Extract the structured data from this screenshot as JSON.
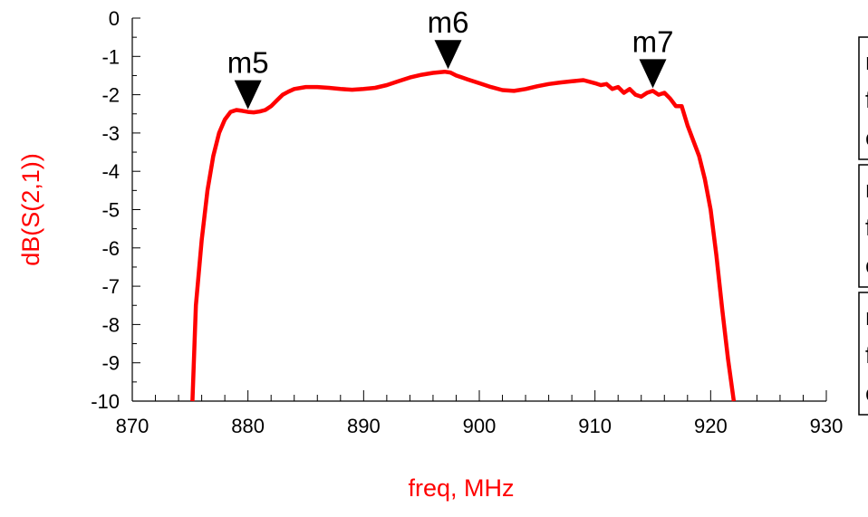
{
  "chart_data": {
    "type": "line",
    "xlabel": "freq, MHz",
    "ylabel": "dB(S(2,1))",
    "xlim": [
      870,
      930
    ],
    "ylim": [
      -10,
      0
    ],
    "x_ticks": [
      870,
      880,
      890,
      900,
      910,
      920,
      930
    ],
    "y_ticks": [
      0,
      -1,
      -2,
      -3,
      -4,
      -5,
      -6,
      -7,
      -8,
      -9,
      -10
    ],
    "grid": false,
    "series": [
      {
        "color": "#ff0000",
        "x": [
          875.2,
          875.5,
          876.0,
          876.5,
          877.0,
          877.5,
          878.0,
          878.5,
          879.0,
          879.5,
          880.0,
          880.5,
          881.0,
          881.5,
          882.0,
          882.5,
          883.0,
          883.5,
          884.0,
          885.0,
          886.0,
          887.0,
          888.0,
          889.0,
          890.0,
          891.0,
          892.0,
          893.0,
          894.0,
          895.0,
          896.0,
          897.0,
          897.5,
          898.0,
          899.0,
          900.0,
          901.0,
          902.0,
          903.0,
          904.0,
          905.0,
          906.0,
          907.0,
          908.0,
          909.0,
          910.0,
          910.5,
          911.0,
          911.5,
          912.0,
          912.5,
          913.0,
          913.5,
          914.0,
          914.5,
          915.0,
          915.5,
          916.0,
          916.5,
          917.0,
          917.5,
          918.0,
          918.5,
          919.0,
          919.5,
          920.0,
          920.5,
          921.0,
          921.5,
          922.0
        ],
        "y": [
          -10.0,
          -7.5,
          -5.8,
          -4.5,
          -3.6,
          -3.0,
          -2.65,
          -2.45,
          -2.4,
          -2.42,
          -2.45,
          -2.46,
          -2.44,
          -2.4,
          -2.3,
          -2.15,
          -2.0,
          -1.92,
          -1.85,
          -1.8,
          -1.8,
          -1.82,
          -1.85,
          -1.87,
          -1.85,
          -1.82,
          -1.75,
          -1.65,
          -1.55,
          -1.48,
          -1.43,
          -1.4,
          -1.42,
          -1.5,
          -1.6,
          -1.7,
          -1.8,
          -1.88,
          -1.9,
          -1.85,
          -1.78,
          -1.72,
          -1.68,
          -1.65,
          -1.62,
          -1.7,
          -1.75,
          -1.72,
          -1.85,
          -1.8,
          -1.95,
          -1.85,
          -2.0,
          -2.05,
          -1.95,
          -1.9,
          -2.0,
          -1.95,
          -2.1,
          -2.3,
          -2.3,
          -2.8,
          -3.2,
          -3.6,
          -4.2,
          -5.0,
          -6.2,
          -7.6,
          -8.9,
          -10.0
        ]
      }
    ],
    "markers": [
      {
        "name": "m5",
        "x": 880.0,
        "y": -2.45
      },
      {
        "name": "m6",
        "x": 897.3,
        "y": -1.4
      },
      {
        "name": "m7",
        "x": 915.0,
        "y": -1.9
      }
    ],
    "marker_boxes": [
      {
        "lines": [
          "m",
          "f",
          "c"
        ]
      },
      {
        "lines": [
          "m",
          "f",
          "c"
        ]
      },
      {
        "lines": [
          "m",
          "f",
          "c"
        ]
      }
    ]
  }
}
